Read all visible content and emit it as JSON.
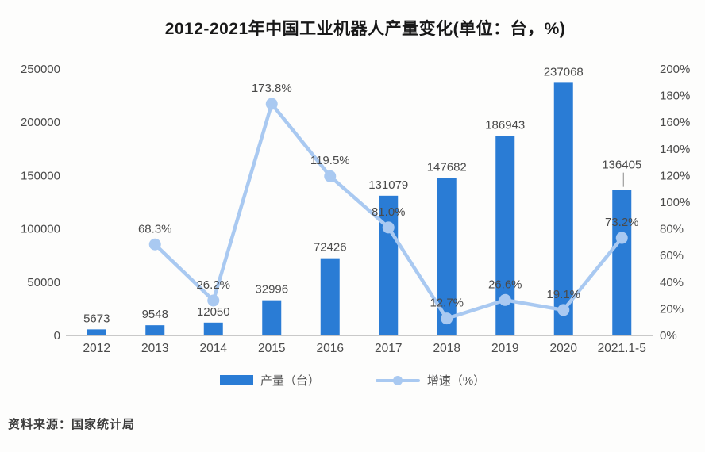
{
  "page": {
    "title": "2012-2021年中国工业机器人产量变化(单位：台，%)",
    "source": "资料来源：国家统计局"
  },
  "legend": {
    "bar_label": "产量（台）",
    "line_label": "增速（%）"
  },
  "colors": {
    "bar": "#2a7cd5",
    "line": "#a9c9f1",
    "axis_text": "#4a4a4a",
    "label_text": "#474747",
    "axis_line": "#c9c9c9",
    "title_text": "#181818",
    "leader_line": "#8a8a8a"
  },
  "chart_data": {
    "type": "bar+line combo",
    "title": "2012-2021年中国工业机器人产量变化(单位：台，%)",
    "categories": [
      "2012",
      "2013",
      "2014",
      "2015",
      "2016",
      "2017",
      "2018",
      "2019",
      "2020",
      "2021.1-5"
    ],
    "series": [
      {
        "name": "产量（台）",
        "type": "bar",
        "axis": "left",
        "values": [
          5673,
          9548,
          12050,
          32996,
          72426,
          131079,
          147682,
          186943,
          237068,
          136405
        ]
      },
      {
        "name": "增速（%）",
        "type": "line",
        "axis": "right",
        "values": [
          null,
          68.3,
          26.2,
          173.8,
          119.5,
          81.0,
          12.7,
          26.6,
          19.1,
          73.2
        ]
      }
    ],
    "left_axis": {
      "min": 0,
      "max": 250000,
      "step": 50000,
      "ticks": [
        "0",
        "50000",
        "100000",
        "150000",
        "200000",
        "250000"
      ]
    },
    "right_axis": {
      "min": 0,
      "max": 200,
      "step": 20,
      "suffix": "%",
      "ticks": [
        "0%",
        "20%",
        "40%",
        "60%",
        "80%",
        "100%",
        "120%",
        "140%",
        "160%",
        "180%",
        "200%"
      ]
    },
    "grid": false,
    "legend_position": "bottom",
    "callout_index": 9
  }
}
